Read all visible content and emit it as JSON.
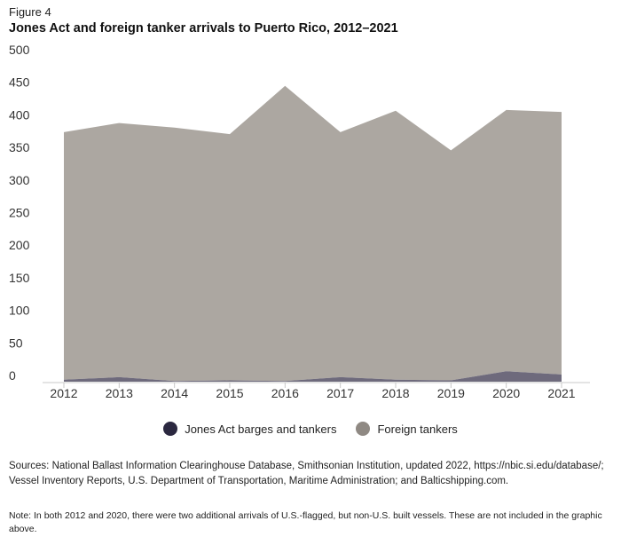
{
  "figure_label": "Figure 4",
  "title": "Jones Act and foreign tanker arrivals to Puerto Rico, 2012–2021",
  "chart_data": {
    "type": "area",
    "stacked": true,
    "title": "Jones Act and foreign tanker arrivals to Puerto Rico, 2012–2021",
    "xlabel": "",
    "ylabel": "",
    "categories": [
      "2012",
      "2013",
      "2014",
      "2015",
      "2016",
      "2017",
      "2018",
      "2019",
      "2020",
      "2021"
    ],
    "ylim": [
      0,
      500
    ],
    "yticks": [
      0,
      50,
      100,
      150,
      200,
      250,
      300,
      350,
      400,
      450,
      500
    ],
    "series": [
      {
        "name": "Jones Act barges and tankers",
        "color": "#6e6a7c",
        "legend_color": "#2b2840",
        "values": [
          3,
          7,
          1,
          2,
          1,
          7,
          3,
          2,
          16,
          11
        ]
      },
      {
        "name": "Foreign tankers",
        "color": "#aca7a1",
        "legend_color": "#8f8983",
        "values": [
          380,
          390,
          389,
          378,
          453,
          376,
          413,
          353,
          401,
          403
        ]
      }
    ],
    "legend_position": "bottom-center",
    "grid": false
  },
  "legend": [
    {
      "label": "Jones Act barges and tankers",
      "color": "#2b2840"
    },
    {
      "label": "Foreign tankers",
      "color": "#8f8983"
    }
  ],
  "sources": "Sources: National Ballast Information Clearinghouse Database, Smithsonian Institution, updated 2022, https://nbic.si.edu/database/; Vessel Inventory Reports, U.S. Department of Transportation, Maritime Administration; and Balticshipping.com.",
  "note": "Note: In both 2012 and 2020, there were two additional arrivals of U.S.-flagged, but non-U.S. built vessels. These are not included in the graphic above."
}
